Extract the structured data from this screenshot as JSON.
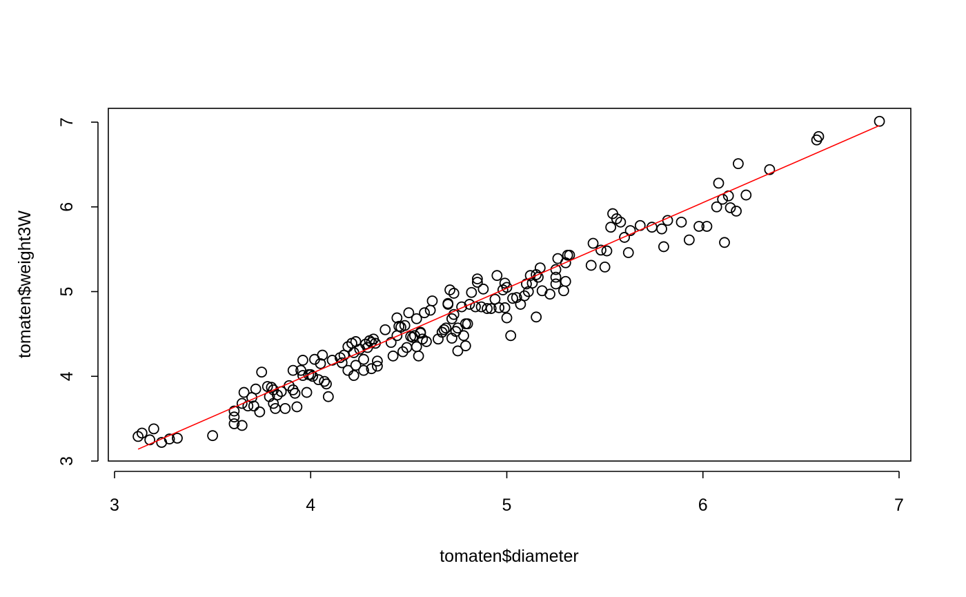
{
  "chart_data": {
    "type": "scatter",
    "title": "",
    "xlabel": "tomaten$diameter",
    "ylabel": "tomaten$weight3W",
    "xlim": [
      3,
      7
    ],
    "ylim": [
      3,
      7
    ],
    "xticks": [
      "3",
      "4",
      "5",
      "6",
      "7"
    ],
    "yticks": [
      "3",
      "4",
      "5",
      "6",
      "7"
    ],
    "grid": false,
    "point_color": "#000000",
    "fit_line": {
      "color": "#ff0000",
      "x": [
        3.12,
        6.9
      ],
      "y": [
        3.14,
        6.96
      ]
    },
    "points": [
      [
        3.12,
        3.29
      ],
      [
        3.14,
        3.33
      ],
      [
        3.18,
        3.25
      ],
      [
        3.2,
        3.38
      ],
      [
        3.24,
        3.22
      ],
      [
        3.28,
        3.26
      ],
      [
        3.32,
        3.27
      ],
      [
        3.5,
        3.3
      ],
      [
        3.61,
        3.59
      ],
      [
        3.61,
        3.52
      ],
      [
        3.61,
        3.44
      ],
      [
        3.65,
        3.42
      ],
      [
        3.65,
        3.68
      ],
      [
        3.66,
        3.81
      ],
      [
        3.68,
        3.65
      ],
      [
        3.7,
        3.75
      ],
      [
        3.71,
        3.65
      ],
      [
        3.72,
        3.85
      ],
      [
        3.74,
        3.58
      ],
      [
        3.75,
        4.05
      ],
      [
        3.78,
        3.88
      ],
      [
        3.79,
        3.76
      ],
      [
        3.8,
        3.87
      ],
      [
        3.81,
        3.84
      ],
      [
        3.81,
        3.68
      ],
      [
        3.82,
        3.62
      ],
      [
        3.83,
        3.78
      ],
      [
        3.85,
        3.82
      ],
      [
        3.87,
        3.62
      ],
      [
        3.89,
        3.89
      ],
      [
        3.91,
        4.07
      ],
      [
        3.91,
        3.84
      ],
      [
        3.92,
        3.8
      ],
      [
        3.93,
        3.64
      ],
      [
        3.95,
        4.07
      ],
      [
        3.96,
        4.01
      ],
      [
        3.96,
        4.19
      ],
      [
        3.98,
        3.81
      ],
      [
        3.99,
        4.02
      ],
      [
        4.0,
        4.02
      ],
      [
        4.01,
        4.0
      ],
      [
        4.02,
        4.2
      ],
      [
        4.04,
        3.96
      ],
      [
        4.05,
        4.15
      ],
      [
        4.06,
        4.25
      ],
      [
        4.07,
        3.94
      ],
      [
        4.08,
        3.91
      ],
      [
        4.09,
        3.76
      ],
      [
        4.11,
        4.19
      ],
      [
        4.15,
        4.22
      ],
      [
        4.16,
        4.16
      ],
      [
        4.17,
        4.25
      ],
      [
        4.19,
        4.35
      ],
      [
        4.19,
        4.07
      ],
      [
        4.21,
        4.39
      ],
      [
        4.22,
        4.01
      ],
      [
        4.22,
        4.28
      ],
      [
        4.23,
        4.41
      ],
      [
        4.23,
        4.13
      ],
      [
        4.25,
        4.32
      ],
      [
        4.27,
        4.2
      ],
      [
        4.27,
        4.07
      ],
      [
        4.28,
        4.38
      ],
      [
        4.29,
        4.34
      ],
      [
        4.3,
        4.42
      ],
      [
        4.31,
        4.4
      ],
      [
        4.31,
        4.09
      ],
      [
        4.32,
        4.44
      ],
      [
        4.33,
        4.39
      ],
      [
        4.34,
        4.12
      ],
      [
        4.34,
        4.18
      ],
      [
        4.38,
        4.55
      ],
      [
        4.41,
        4.4
      ],
      [
        4.42,
        4.24
      ],
      [
        4.44,
        4.69
      ],
      [
        4.44,
        4.48
      ],
      [
        4.45,
        4.59
      ],
      [
        4.46,
        4.58
      ],
      [
        4.47,
        4.29
      ],
      [
        4.48,
        4.6
      ],
      [
        4.49,
        4.34
      ],
      [
        4.5,
        4.75
      ],
      [
        4.51,
        4.47
      ],
      [
        4.52,
        4.46
      ],
      [
        4.53,
        4.48
      ],
      [
        4.54,
        4.68
      ],
      [
        4.54,
        4.35
      ],
      [
        4.55,
        4.24
      ],
      [
        4.56,
        4.52
      ],
      [
        4.56,
        4.51
      ],
      [
        4.57,
        4.44
      ],
      [
        4.58,
        4.75
      ],
      [
        4.59,
        4.41
      ],
      [
        4.61,
        4.78
      ],
      [
        4.62,
        4.89
      ],
      [
        4.65,
        4.44
      ],
      [
        4.67,
        4.52
      ],
      [
        4.68,
        4.55
      ],
      [
        4.69,
        4.57
      ],
      [
        4.7,
        4.85
      ],
      [
        4.7,
        4.86
      ],
      [
        4.71,
        5.02
      ],
      [
        4.72,
        4.68
      ],
      [
        4.72,
        4.45
      ],
      [
        4.73,
        4.98
      ],
      [
        4.73,
        4.73
      ],
      [
        4.74,
        4.53
      ],
      [
        4.75,
        4.57
      ],
      [
        4.75,
        4.3
      ],
      [
        4.77,
        4.82
      ],
      [
        4.78,
        4.48
      ],
      [
        4.79,
        4.36
      ],
      [
        4.79,
        4.62
      ],
      [
        4.8,
        4.62
      ],
      [
        4.81,
        4.85
      ],
      [
        4.82,
        4.99
      ],
      [
        4.84,
        4.82
      ],
      [
        4.85,
        5.11
      ],
      [
        4.85,
        5.15
      ],
      [
        4.87,
        4.82
      ],
      [
        4.88,
        5.03
      ],
      [
        4.9,
        4.8
      ],
      [
        4.92,
        4.8
      ],
      [
        4.94,
        4.91
      ],
      [
        4.95,
        5.19
      ],
      [
        4.96,
        4.81
      ],
      [
        4.98,
        5.02
      ],
      [
        4.99,
        5.1
      ],
      [
        4.99,
        4.81
      ],
      [
        5.0,
        5.05
      ],
      [
        5.0,
        4.69
      ],
      [
        5.02,
        4.48
      ],
      [
        5.03,
        4.92
      ],
      [
        5.05,
        4.93
      ],
      [
        5.07,
        4.85
      ],
      [
        5.09,
        4.95
      ],
      [
        5.1,
        5.09
      ],
      [
        5.11,
        5.0
      ],
      [
        5.12,
        5.19
      ],
      [
        5.13,
        5.1
      ],
      [
        5.15,
        5.2
      ],
      [
        5.15,
        4.7
      ],
      [
        5.16,
        5.17
      ],
      [
        5.17,
        5.28
      ],
      [
        5.18,
        5.01
      ],
      [
        5.22,
        4.97
      ],
      [
        5.25,
        5.26
      ],
      [
        5.25,
        5.17
      ],
      [
        5.25,
        5.09
      ],
      [
        5.26,
        5.39
      ],
      [
        5.29,
        5.01
      ],
      [
        5.3,
        5.12
      ],
      [
        5.3,
        5.34
      ],
      [
        5.31,
        5.43
      ],
      [
        5.32,
        5.43
      ],
      [
        5.43,
        5.31
      ],
      [
        5.44,
        5.57
      ],
      [
        5.48,
        5.49
      ],
      [
        5.5,
        5.29
      ],
      [
        5.51,
        5.48
      ],
      [
        5.53,
        5.76
      ],
      [
        5.54,
        5.92
      ],
      [
        5.56,
        5.86
      ],
      [
        5.58,
        5.82
      ],
      [
        5.6,
        5.64
      ],
      [
        5.62,
        5.46
      ],
      [
        5.63,
        5.72
      ],
      [
        5.68,
        5.78
      ],
      [
        5.74,
        5.76
      ],
      [
        5.79,
        5.74
      ],
      [
        5.8,
        5.53
      ],
      [
        5.82,
        5.84
      ],
      [
        5.89,
        5.82
      ],
      [
        5.93,
        5.61
      ],
      [
        5.98,
        5.77
      ],
      [
        6.02,
        5.77
      ],
      [
        6.07,
        6.0
      ],
      [
        6.08,
        6.28
      ],
      [
        6.1,
        6.09
      ],
      [
        6.11,
        5.58
      ],
      [
        6.13,
        6.13
      ],
      [
        6.14,
        5.99
      ],
      [
        6.17,
        5.95
      ],
      [
        6.18,
        6.51
      ],
      [
        6.22,
        6.14
      ],
      [
        6.34,
        6.44
      ],
      [
        6.58,
        6.79
      ],
      [
        6.59,
        6.83
      ],
      [
        6.9,
        7.01
      ]
    ]
  }
}
